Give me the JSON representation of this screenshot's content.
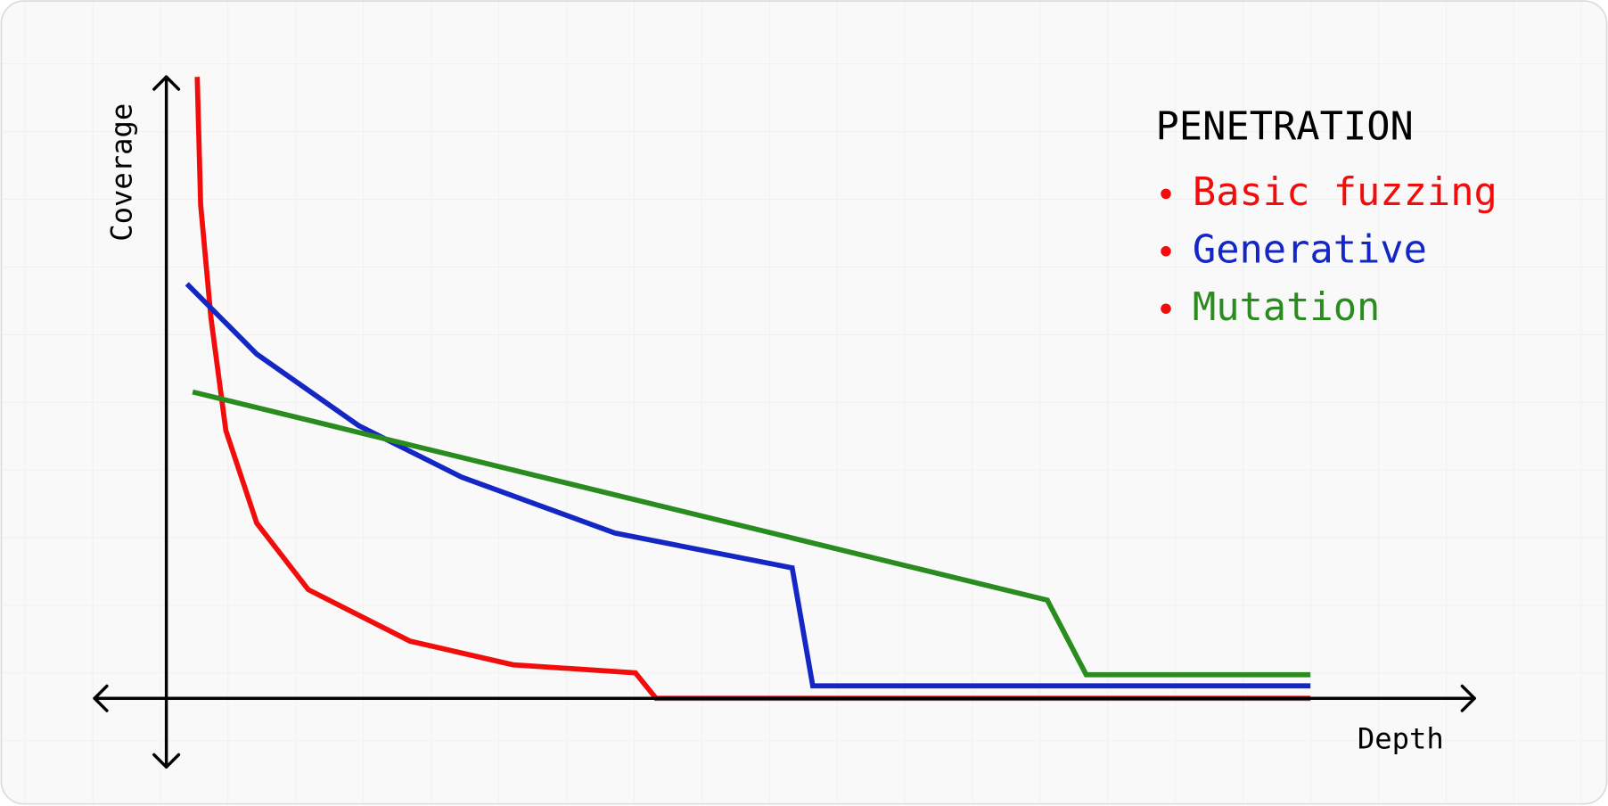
{
  "chart_data": {
    "type": "line",
    "xlabel": "Depth",
    "ylabel": "Coverage",
    "legend_title": "PENETRATION",
    "xlim": [
      0,
      100
    ],
    "ylim": [
      0,
      100
    ],
    "legend": "upper right",
    "series": [
      {
        "name": "Basic fuzzing",
        "color": "#f20d0d",
        "x": [
          2.7,
          3.0,
          3.9,
          5.2,
          7.9,
          12.4,
          21.3,
          30.3,
          41.0,
          42.8,
          100
        ],
        "values": [
          100,
          79.4,
          61.2,
          43.1,
          28.2,
          17.5,
          9.2,
          5.4,
          4.1,
          0,
          0
        ]
      },
      {
        "name": "Generative",
        "color": "#1426c4",
        "x": [
          1.8,
          7.9,
          16.8,
          25.8,
          39.2,
          54.7,
          56.5,
          100
        ],
        "values": [
          66.7,
          55.4,
          43.9,
          35.6,
          26.6,
          21.0,
          2.0,
          2.0
        ]
      },
      {
        "name": "Mutation",
        "color": "#2a8c1f",
        "x": [
          2.3,
          77.0,
          80.4,
          100
        ],
        "values": [
          49.3,
          15.8,
          3.8,
          3.8
        ]
      }
    ]
  }
}
